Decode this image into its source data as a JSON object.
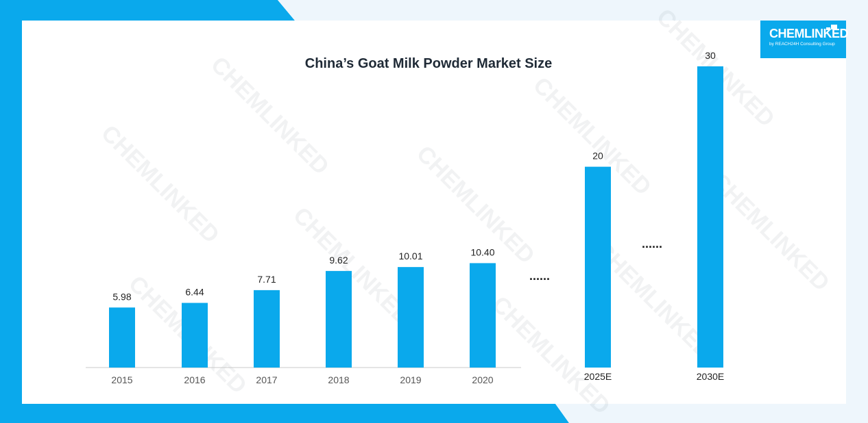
{
  "brand": {
    "name": "CHEMLINKED",
    "tagline": "by REACH24H Consulting Group"
  },
  "colors": {
    "accent": "#0aa9ec",
    "bar": "#0aa9ec",
    "background_band": "#ecf6fd"
  },
  "chart_data": {
    "type": "bar",
    "title": "China’s Goat Milk Powder Market Size",
    "xlabel": "",
    "ylabel": "",
    "ylim": [
      0,
      30
    ],
    "grid": false,
    "legend": "none",
    "categories": [
      "2015",
      "2016",
      "2017",
      "2018",
      "2019",
      "2020",
      "2025E",
      "2030E"
    ],
    "values": [
      5.98,
      6.44,
      7.71,
      9.62,
      10.01,
      10.4,
      20,
      30
    ],
    "value_labels": [
      "5.98",
      "6.44",
      "7.71",
      "9.62",
      "10.01",
      "10.40",
      "20",
      "30"
    ],
    "gap_markers": [
      "......",
      "......"
    ]
  }
}
